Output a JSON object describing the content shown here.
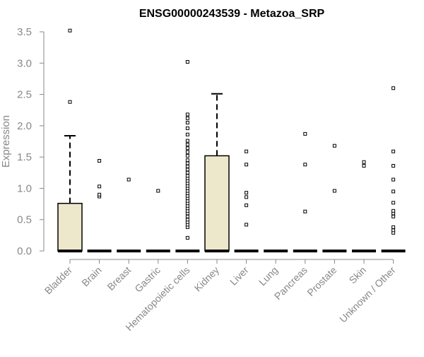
{
  "chart_data": {
    "type": "box",
    "title": "ENSG00000243539 - Metazoa_SRP",
    "xlabel": "",
    "ylabel": "Expression",
    "ylim": [
      0,
      3.5
    ],
    "yticks": [
      "0.0",
      "0.5",
      "1.0",
      "1.5",
      "2.0",
      "2.5",
      "3.0",
      "3.5"
    ],
    "grid": false,
    "legend": "none",
    "colors": {
      "box_fill": "#ede7cc",
      "axis": "#888888",
      "tick_label": "#888888",
      "ink": "#000000"
    },
    "categories": [
      "Bladder",
      "Brain",
      "Breast",
      "Gastric",
      "Hematopoietic cells",
      "Kidney",
      "Liver",
      "Lung",
      "Pancreas",
      "Prostate",
      "Skin",
      "Unknown / Other"
    ],
    "boxes": [
      {
        "q1": 0,
        "median": 0,
        "q3": 0.76,
        "whisker_low": 0,
        "whisker_high": 1.84,
        "outliers": [
          2.38,
          3.52
        ]
      },
      {
        "q1": 0,
        "median": 0,
        "q3": 0,
        "whisker_low": 0,
        "whisker_high": 0,
        "outliers": [
          0.87,
          0.9,
          1.03,
          1.44
        ]
      },
      {
        "q1": 0,
        "median": 0,
        "q3": 0,
        "whisker_low": 0,
        "whisker_high": 0,
        "outliers": [
          1.14
        ]
      },
      {
        "q1": 0,
        "median": 0,
        "q3": 0,
        "whisker_low": 0,
        "whisker_high": 0,
        "outliers": [
          0.96
        ]
      },
      {
        "q1": 0,
        "median": 0,
        "q3": 0,
        "whisker_low": 0,
        "whisker_high": 0,
        "outliers": [
          0.21,
          0.38,
          0.42,
          0.46,
          0.5,
          0.55,
          0.6,
          0.64,
          0.68,
          0.72,
          0.76,
          0.8,
          0.84,
          0.88,
          0.92,
          0.96,
          1.0,
          1.04,
          1.08,
          1.12,
          1.16,
          1.2,
          1.25,
          1.3,
          1.35,
          1.4,
          1.45,
          1.52,
          1.58,
          1.64,
          1.7,
          1.76,
          1.86,
          1.96,
          2.05,
          2.12,
          2.18,
          3.02
        ]
      },
      {
        "q1": 0,
        "median": 0,
        "q3": 1.52,
        "whisker_low": 0,
        "whisker_high": 2.51,
        "outliers": []
      },
      {
        "q1": 0,
        "median": 0,
        "q3": 0,
        "whisker_low": 0,
        "whisker_high": 0,
        "outliers": [
          0.42,
          0.73,
          0.86,
          0.93,
          1.38,
          1.59
        ]
      },
      {
        "q1": 0,
        "median": 0,
        "q3": 0,
        "whisker_low": 0,
        "whisker_high": 0,
        "outliers": []
      },
      {
        "q1": 0,
        "median": 0,
        "q3": 0,
        "whisker_low": 0,
        "whisker_high": 0,
        "outliers": [
          0.63,
          1.38,
          1.87
        ]
      },
      {
        "q1": 0,
        "median": 0,
        "q3": 0,
        "whisker_low": 0,
        "whisker_high": 0,
        "outliers": [
          0.96,
          1.68
        ]
      },
      {
        "q1": 0,
        "median": 0,
        "q3": 0,
        "whisker_low": 0,
        "whisker_high": 0,
        "outliers": [
          1.36,
          1.42
        ]
      },
      {
        "q1": 0,
        "median": 0,
        "q3": 0,
        "whisker_low": 0,
        "whisker_high": 0,
        "outliers": [
          0.29,
          0.33,
          0.38,
          0.55,
          0.6,
          0.64,
          0.77,
          0.95,
          1.14,
          1.36,
          1.59,
          2.6
        ]
      }
    ]
  }
}
